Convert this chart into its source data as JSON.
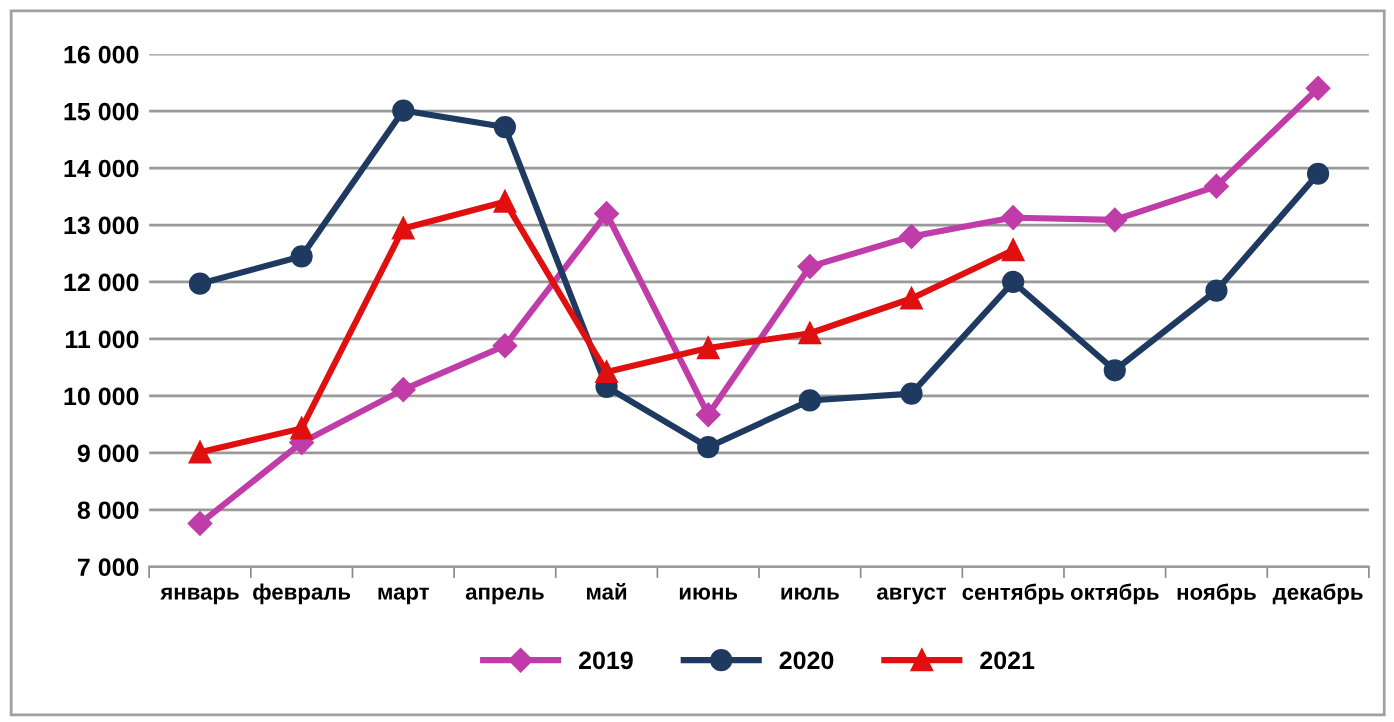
{
  "chart_data": {
    "type": "line",
    "categories": [
      "январь",
      "февраль",
      "март",
      "апрель",
      "май",
      "июнь",
      "июль",
      "август",
      "сентябрь",
      "октябрь",
      "ноябрь",
      "декабрь"
    ],
    "series": [
      {
        "name": "2019",
        "color": "#c03ca8",
        "marker": "diamond",
        "values": [
          7760,
          9180,
          10110,
          10880,
          13200,
          9670,
          12270,
          12800,
          13130,
          13090,
          13680,
          15400
        ]
      },
      {
        "name": "2020",
        "color": "#1f3a60",
        "marker": "circle",
        "values": [
          11970,
          12450,
          15010,
          14720,
          10160,
          9100,
          9920,
          10040,
          12000,
          10450,
          11850,
          13900
        ]
      },
      {
        "name": "2021",
        "color": "#e01010",
        "marker": "triangle",
        "values": [
          9010,
          9430,
          12940,
          13410,
          10420,
          10840,
          11100,
          11710,
          12560,
          null,
          null,
          null
        ]
      }
    ],
    "ylim": [
      7000,
      16000
    ],
    "yticks": [
      {
        "value": 7000,
        "label": "7 000"
      },
      {
        "value": 8000,
        "label": "8 000"
      },
      {
        "value": 9000,
        "label": "9 000"
      },
      {
        "value": 10000,
        "label": "10 000"
      },
      {
        "value": 11000,
        "label": "11 000"
      },
      {
        "value": 12000,
        "label": "12 000"
      },
      {
        "value": 13000,
        "label": "13 000"
      },
      {
        "value": 14000,
        "label": "14 000"
      },
      {
        "value": 15000,
        "label": "15 000"
      },
      {
        "value": 16000,
        "label": "16 000"
      }
    ],
    "grid": "y",
    "legend": "bottom",
    "line_style": "solid"
  }
}
